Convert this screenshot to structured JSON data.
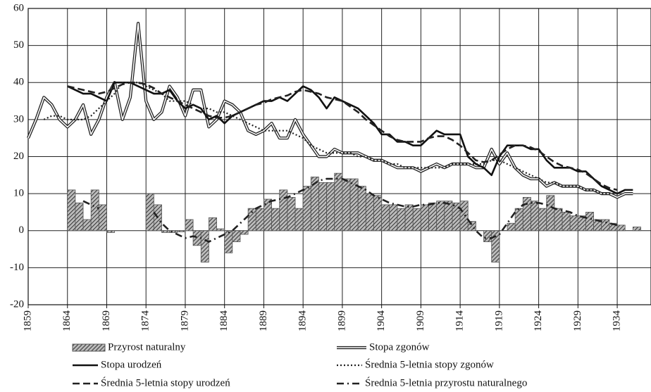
{
  "chart_data": {
    "type": "bar-line",
    "x": [
      1859,
      1860,
      1861,
      1862,
      1863,
      1864,
      1865,
      1866,
      1867,
      1868,
      1869,
      1870,
      1871,
      1872,
      1873,
      1874,
      1875,
      1876,
      1877,
      1878,
      1879,
      1880,
      1881,
      1882,
      1883,
      1884,
      1885,
      1886,
      1887,
      1888,
      1889,
      1890,
      1891,
      1892,
      1893,
      1894,
      1895,
      1896,
      1897,
      1898,
      1899,
      1900,
      1901,
      1902,
      1903,
      1904,
      1905,
      1906,
      1907,
      1908,
      1909,
      1910,
      1911,
      1912,
      1913,
      1914,
      1915,
      1916,
      1917,
      1918,
      1919,
      1920,
      1921,
      1922,
      1923,
      1924,
      1925,
      1926,
      1927,
      1928,
      1929,
      1930,
      1931,
      1932,
      1933,
      1934,
      1935,
      1936
    ],
    "xlim": [
      1859,
      1938.3
    ],
    "xticks": [
      1859,
      1864,
      1869,
      1874,
      1879,
      1884,
      1889,
      1894,
      1899,
      1904,
      1909,
      1914,
      1919,
      1924,
      1929,
      1934
    ],
    "ylim": [
      -20,
      60
    ],
    "yticks": [
      -20,
      -10,
      0,
      10,
      20,
      30,
      40,
      50,
      60
    ],
    "grid": true,
    "series": [
      {
        "name": "Przyrost naturalny",
        "style": "bar",
        "color": "#555555",
        "values": [
          null,
          null,
          null,
          null,
          null,
          11,
          7.5,
          3,
          11,
          7,
          -0.5,
          null,
          null,
          null,
          null,
          10,
          7,
          -0.5,
          -0.5,
          -0.3,
          3,
          -4,
          -8.5,
          3.5,
          0.5,
          -6,
          -3,
          -1,
          6,
          6,
          8.5,
          6,
          11,
          9,
          6,
          12,
          14.5,
          13,
          13,
          15.5,
          14,
          14,
          12,
          10,
          9.5,
          7,
          7,
          6,
          7,
          6,
          7,
          7.5,
          8,
          8,
          7.5,
          8,
          2.5,
          0,
          -3,
          -8.5,
          0,
          2,
          6,
          9,
          8,
          6,
          9.5,
          6,
          5,
          4,
          4,
          5,
          3,
          3,
          2,
          1.5,
          0,
          1
        ]
      },
      {
        "name": "Stopa zgonów",
        "style": "double",
        "color": "#222222",
        "values": [
          25,
          30,
          36,
          34,
          30,
          28,
          30,
          34,
          26,
          30,
          36,
          40,
          30,
          36,
          56,
          35,
          30,
          32,
          39,
          36,
          31,
          38,
          38,
          28,
          30,
          35,
          34,
          32,
          27,
          26,
          27,
          29,
          25,
          25,
          30,
          26,
          23,
          20,
          20,
          22,
          21,
          21,
          21,
          20,
          19,
          19,
          18,
          17,
          17,
          17,
          16,
          17,
          18,
          17,
          18,
          18,
          18,
          17,
          17,
          22,
          18,
          21,
          17,
          15,
          14,
          14,
          12,
          13,
          12,
          12,
          12,
          11,
          11,
          10,
          10,
          9,
          10,
          10
        ]
      },
      {
        "name": "Stopa urodzeń",
        "style": "solid",
        "color": "#111111",
        "values": [
          null,
          null,
          null,
          null,
          null,
          39,
          38,
          37,
          37,
          36,
          35,
          40,
          40,
          40,
          39,
          38,
          37,
          37,
          38,
          35,
          33,
          34,
          33,
          30,
          31,
          29,
          31,
          32,
          33,
          34,
          35,
          35,
          36,
          35,
          37,
          39,
          38,
          36,
          33,
          36,
          35,
          34,
          33,
          31,
          29,
          26,
          26,
          24,
          24,
          23,
          23,
          25,
          27,
          26,
          26,
          26,
          20,
          18,
          17,
          15,
          20,
          23,
          23,
          23,
          22,
          22,
          19,
          17,
          17,
          17,
          16,
          16,
          14,
          12,
          11,
          10,
          11,
          11
        ]
      },
      {
        "name": "Średnia 5-letnia stopy zgonów",
        "style": "dotted",
        "color": "#222222",
        "values": [
          null,
          null,
          30,
          31,
          31,
          30,
          30,
          30,
          31,
          33,
          35,
          37,
          40,
          40,
          40,
          39,
          38,
          37,
          35,
          35,
          35,
          34,
          33,
          33,
          32,
          32,
          31,
          30,
          29,
          28,
          27,
          27,
          27,
          27,
          26,
          25,
          23,
          22,
          21,
          21,
          21,
          21,
          20,
          20,
          19,
          19,
          18,
          18,
          17,
          17,
          17,
          17,
          17,
          17,
          18,
          18,
          18,
          18,
          18,
          19,
          19,
          18,
          17,
          16,
          15,
          14,
          13,
          13,
          12,
          12,
          12,
          11,
          11,
          10,
          10,
          10,
          null,
          null
        ]
      },
      {
        "name": "Średnia 5-letnia stopy urodzeń",
        "style": "dashed",
        "color": "#222222",
        "values": [
          null,
          null,
          null,
          null,
          null,
          39,
          38.5,
          38,
          37.5,
          37,
          37.5,
          38.5,
          39.5,
          40,
          40,
          39.5,
          38.5,
          37,
          36,
          35,
          34,
          33,
          32,
          31,
          30.5,
          30.5,
          31,
          32,
          33,
          34,
          34.5,
          35.5,
          36,
          36.5,
          37.5,
          38,
          37.5,
          37,
          36,
          35.5,
          35,
          33.5,
          32,
          30,
          28.5,
          27,
          25.5,
          24.5,
          24,
          24,
          24,
          25,
          25.5,
          25.5,
          24.5,
          23,
          21,
          19,
          18.5,
          19,
          20.5,
          22,
          23,
          23,
          22.5,
          21.5,
          20,
          18.5,
          17.5,
          17,
          16.5,
          15.5,
          14,
          12.5,
          11.5,
          11,
          null,
          null
        ]
      },
      {
        "name": "Średnia 5-letnia przyrostu naturalnego",
        "style": "dashdot",
        "color": "#222222",
        "values": [
          null,
          null,
          null,
          null,
          null,
          null,
          null,
          8,
          7,
          6,
          null,
          null,
          null,
          null,
          null,
          null,
          5,
          2,
          0,
          -1,
          -2,
          -1.5,
          -2,
          -3,
          -2,
          -1,
          0,
          2,
          4,
          6,
          7,
          8,
          8.5,
          9,
          10,
          11,
          12,
          13.5,
          14,
          14,
          14,
          13,
          12,
          11,
          9.5,
          8.5,
          7.5,
          7,
          6.5,
          6.5,
          7,
          7,
          7.5,
          7.5,
          7,
          6,
          3,
          0,
          -2,
          -2,
          -1,
          2,
          5,
          7,
          7.5,
          7.5,
          7,
          6,
          5.5,
          5,
          4,
          3.5,
          3,
          2.5,
          2,
          1.5,
          null,
          null
        ]
      }
    ]
  }
}
